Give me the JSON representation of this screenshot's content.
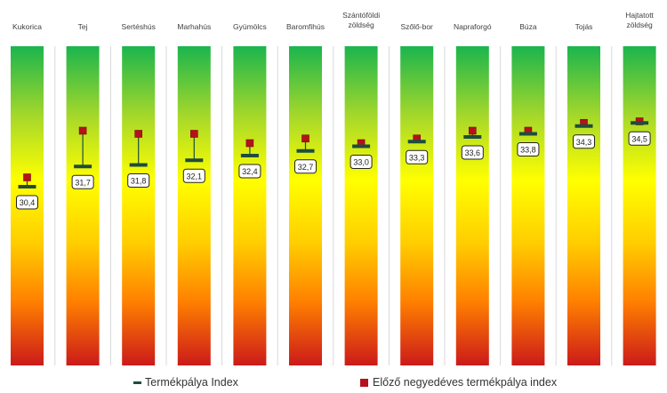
{
  "chart_data": {
    "type": "bar",
    "categories": [
      "Kukorica",
      "Tej",
      "Sertéshús",
      "Marhahús",
      "Gyümölcs",
      "Baromfihús",
      "Szántóföldi zöldség",
      "Szőlő-bor",
      "Napraforgó",
      "Búza",
      "Tojás",
      "Hajtatott zöldség"
    ],
    "series": [
      {
        "name": "Termékpálya Index",
        "values": [
          30.4,
          31.7,
          31.8,
          32.1,
          32.4,
          32.7,
          33.0,
          33.3,
          33.6,
          33.8,
          34.3,
          34.5
        ]
      },
      {
        "name": "Előző negyedéves termékpálya index",
        "values": [
          31.0,
          34.0,
          33.8,
          33.8,
          33.2,
          33.5,
          33.2,
          33.5,
          34.0,
          34.0,
          34.5,
          34.6
        ]
      }
    ],
    "value_labels": [
      "30,4",
      "31,7",
      "31,8",
      "32,1",
      "32,4",
      "32,7",
      "33,0",
      "33,3",
      "33,6",
      "33,8",
      "34,3",
      "34,5"
    ],
    "gradient_colors": [
      "#1ab54e",
      "#ffff00",
      "#ff9900",
      "#cc1a1a"
    ],
    "colors": {
      "index_marker": "#1e4d3d",
      "previous_marker": "#b5121b"
    },
    "legend_position": "bottom"
  },
  "legend": {
    "index_label": "Termékpálya Index",
    "previous_label": "Előző negyedéves termékpálya index"
  }
}
